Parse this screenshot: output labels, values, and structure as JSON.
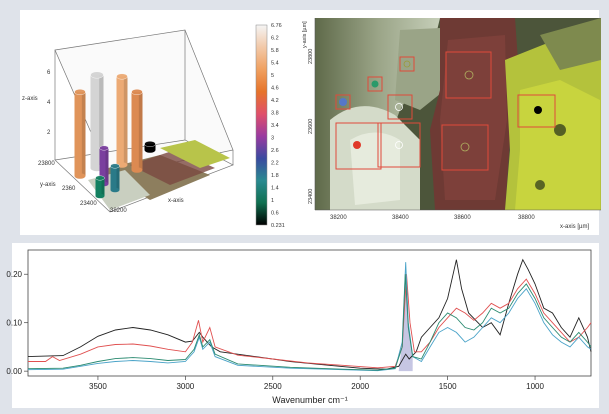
{
  "colorbar": {
    "ticks": [
      "6.76",
      "6.2",
      "5.8",
      "5.4",
      "5",
      "4.6",
      "4.2",
      "3.8",
      "3.4",
      "3",
      "2.6",
      "2.2",
      "1.8",
      "1.4",
      "1",
      "0.6",
      "0.231"
    ],
    "stops": [
      "#f5f5f5",
      "#f2c9a8",
      "#f0a060",
      "#e6742a",
      "#e0506a",
      "#9a3aa0",
      "#3a4aa0",
      "#2a8a90",
      "#107050",
      "#000000"
    ]
  },
  "plot3d": {
    "z_axis_label": "z-axis",
    "y_axis_label": "y-axis",
    "x_axis_label": "x-axis",
    "z_ticks": [
      "6",
      "4",
      "2"
    ],
    "y_ticks": [
      "23800",
      "2360",
      "23400"
    ],
    "x_ticks": [
      "38200"
    ],
    "bars": [
      {
        "value": 6.2,
        "color": "#d4d4d4"
      },
      {
        "value": 5.9,
        "color": "#ecaa74"
      },
      {
        "value": 5.6,
        "color": "#e0945a"
      },
      {
        "value": 5.2,
        "color": "#dc8a52"
      },
      {
        "value": 2.4,
        "color": "#7a3f9e"
      },
      {
        "value": 1.6,
        "color": "#2a7a88"
      },
      {
        "value": 1.2,
        "color": "#138060"
      },
      {
        "value": 0.4,
        "color": "#000000"
      }
    ]
  },
  "map": {
    "y_axis_label": "y-axis [µm]",
    "x_axis_label": "x-axis [µm]",
    "x_ticks": [
      "38200",
      "38400",
      "38600",
      "38800"
    ],
    "y_ticks": [
      "23800",
      "23600",
      "23400"
    ]
  },
  "chart_data": {
    "type": "line",
    "xlabel": "Wavenumber cm⁻¹",
    "ylabel": "",
    "xlim": [
      3900,
      680
    ],
    "ylim": [
      -0.01,
      0.25
    ],
    "x_ticks": [
      3500,
      3000,
      2500,
      2000,
      1500,
      1000
    ],
    "y_ticks": [
      0.0,
      0.1,
      0.2
    ],
    "y_tick_labels": [
      "0.00",
      "0.10",
      "0.20"
    ],
    "series": [
      {
        "color": "#222222",
        "points": [
          [
            3900,
            0.03
          ],
          [
            3700,
            0.032
          ],
          [
            3600,
            0.05
          ],
          [
            3500,
            0.072
          ],
          [
            3400,
            0.085
          ],
          [
            3300,
            0.09
          ],
          [
            3200,
            0.085
          ],
          [
            3100,
            0.075
          ],
          [
            3000,
            0.06
          ],
          [
            2960,
            0.062
          ],
          [
            2920,
            0.08
          ],
          [
            2900,
            0.07
          ],
          [
            2850,
            0.05
          ],
          [
            2800,
            0.04
          ],
          [
            2600,
            0.03
          ],
          [
            2400,
            0.02
          ],
          [
            2200,
            0.013
          ],
          [
            2000,
            0.006
          ],
          [
            1850,
            0.004
          ],
          [
            1780,
            0.01
          ],
          [
            1740,
            0.035
          ],
          [
            1720,
            0.025
          ],
          [
            1680,
            0.04
          ],
          [
            1650,
            0.07
          ],
          [
            1600,
            0.09
          ],
          [
            1550,
            0.11
          ],
          [
            1500,
            0.15
          ],
          [
            1450,
            0.23
          ],
          [
            1420,
            0.17
          ],
          [
            1380,
            0.12
          ],
          [
            1300,
            0.09
          ],
          [
            1250,
            0.1
          ],
          [
            1200,
            0.075
          ],
          [
            1150,
            0.14
          ],
          [
            1100,
            0.2
          ],
          [
            1070,
            0.23
          ],
          [
            1040,
            0.21
          ],
          [
            1000,
            0.18
          ],
          [
            950,
            0.13
          ],
          [
            900,
            0.12
          ],
          [
            850,
            0.09
          ],
          [
            800,
            0.07
          ],
          [
            750,
            0.11
          ],
          [
            700,
            0.07
          ],
          [
            680,
            0.04
          ]
        ]
      },
      {
        "color": "#e05050",
        "points": [
          [
            3900,
            0.02
          ],
          [
            3800,
            0.02
          ],
          [
            3760,
            0.03
          ],
          [
            3720,
            0.022
          ],
          [
            3600,
            0.035
          ],
          [
            3500,
            0.05
          ],
          [
            3400,
            0.055
          ],
          [
            3300,
            0.056
          ],
          [
            3200,
            0.052
          ],
          [
            3100,
            0.045
          ],
          [
            3000,
            0.04
          ],
          [
            2960,
            0.06
          ],
          [
            2925,
            0.105
          ],
          [
            2900,
            0.06
          ],
          [
            2860,
            0.09
          ],
          [
            2830,
            0.05
          ],
          [
            2700,
            0.033
          ],
          [
            2500,
            0.025
          ],
          [
            2300,
            0.017
          ],
          [
            2100,
            0.012
          ],
          [
            1900,
            0.007
          ],
          [
            1800,
            0.01
          ],
          [
            1760,
            0.05
          ],
          [
            1735,
            0.2
          ],
          [
            1715,
            0.1
          ],
          [
            1690,
            0.04
          ],
          [
            1650,
            0.04
          ],
          [
            1600,
            0.06
          ],
          [
            1550,
            0.09
          ],
          [
            1500,
            0.11
          ],
          [
            1450,
            0.13
          ],
          [
            1400,
            0.12
          ],
          [
            1350,
            0.105
          ],
          [
            1300,
            0.12
          ],
          [
            1250,
            0.14
          ],
          [
            1200,
            0.13
          ],
          [
            1150,
            0.14
          ],
          [
            1100,
            0.17
          ],
          [
            1050,
            0.19
          ],
          [
            1000,
            0.16
          ],
          [
            950,
            0.12
          ],
          [
            900,
            0.1
          ],
          [
            850,
            0.08
          ],
          [
            800,
            0.06
          ],
          [
            750,
            0.07
          ],
          [
            700,
            0.09
          ],
          [
            680,
            0.1
          ]
        ]
      },
      {
        "color": "#4aa3c8",
        "points": [
          [
            3900,
            0.003
          ],
          [
            3700,
            0.004
          ],
          [
            3600,
            0.01
          ],
          [
            3500,
            0.016
          ],
          [
            3400,
            0.02
          ],
          [
            3300,
            0.022
          ],
          [
            3200,
            0.02
          ],
          [
            3100,
            0.017
          ],
          [
            3000,
            0.02
          ],
          [
            2950,
            0.04
          ],
          [
            2920,
            0.07
          ],
          [
            2900,
            0.045
          ],
          [
            2860,
            0.06
          ],
          [
            2830,
            0.03
          ],
          [
            2700,
            0.012
          ],
          [
            2400,
            0.006
          ],
          [
            2100,
            0.003
          ],
          [
            1900,
            0.001
          ],
          [
            1800,
            0.005
          ],
          [
            1760,
            0.06
          ],
          [
            1740,
            0.225
          ],
          [
            1725,
            0.1
          ],
          [
            1700,
            0.03
          ],
          [
            1650,
            0.02
          ],
          [
            1600,
            0.05
          ],
          [
            1550,
            0.08
          ],
          [
            1500,
            0.09
          ],
          [
            1450,
            0.08
          ],
          [
            1400,
            0.06
          ],
          [
            1350,
            0.07
          ],
          [
            1300,
            0.09
          ],
          [
            1250,
            0.11
          ],
          [
            1200,
            0.1
          ],
          [
            1150,
            0.12
          ],
          [
            1100,
            0.15
          ],
          [
            1050,
            0.17
          ],
          [
            1000,
            0.14
          ],
          [
            950,
            0.1
          ],
          [
            900,
            0.075
          ],
          [
            850,
            0.06
          ],
          [
            800,
            0.05
          ],
          [
            750,
            0.07
          ],
          [
            700,
            0.05
          ],
          [
            680,
            0.045
          ]
        ]
      },
      {
        "color": "#2a8a70",
        "points": [
          [
            3900,
            0.005
          ],
          [
            3700,
            0.006
          ],
          [
            3600,
            0.012
          ],
          [
            3500,
            0.02
          ],
          [
            3400,
            0.026
          ],
          [
            3300,
            0.028
          ],
          [
            3200,
            0.026
          ],
          [
            3100,
            0.022
          ],
          [
            3000,
            0.024
          ],
          [
            2950,
            0.045
          ],
          [
            2920,
            0.075
          ],
          [
            2900,
            0.05
          ],
          [
            2860,
            0.065
          ],
          [
            2830,
            0.035
          ],
          [
            2700,
            0.015
          ],
          [
            2400,
            0.008
          ],
          [
            2100,
            0.004
          ],
          [
            1900,
            0.002
          ],
          [
            1800,
            0.006
          ],
          [
            1760,
            0.05
          ],
          [
            1742,
            0.2
          ],
          [
            1725,
            0.09
          ],
          [
            1700,
            0.03
          ],
          [
            1650,
            0.025
          ],
          [
            1600,
            0.06
          ],
          [
            1550,
            0.1
          ],
          [
            1500,
            0.12
          ],
          [
            1450,
            0.11
          ],
          [
            1400,
            0.09
          ],
          [
            1350,
            0.085
          ],
          [
            1300,
            0.1
          ],
          [
            1250,
            0.13
          ],
          [
            1200,
            0.12
          ],
          [
            1150,
            0.13
          ],
          [
            1100,
            0.16
          ],
          [
            1050,
            0.18
          ],
          [
            1000,
            0.15
          ],
          [
            950,
            0.11
          ],
          [
            900,
            0.09
          ],
          [
            850,
            0.07
          ],
          [
            800,
            0.06
          ],
          [
            750,
            0.08
          ],
          [
            700,
            0.06
          ],
          [
            680,
            0.05
          ]
        ]
      }
    ],
    "highlight_band": {
      "from": 1780,
      "to": 1700,
      "color": "#8080c0"
    }
  }
}
